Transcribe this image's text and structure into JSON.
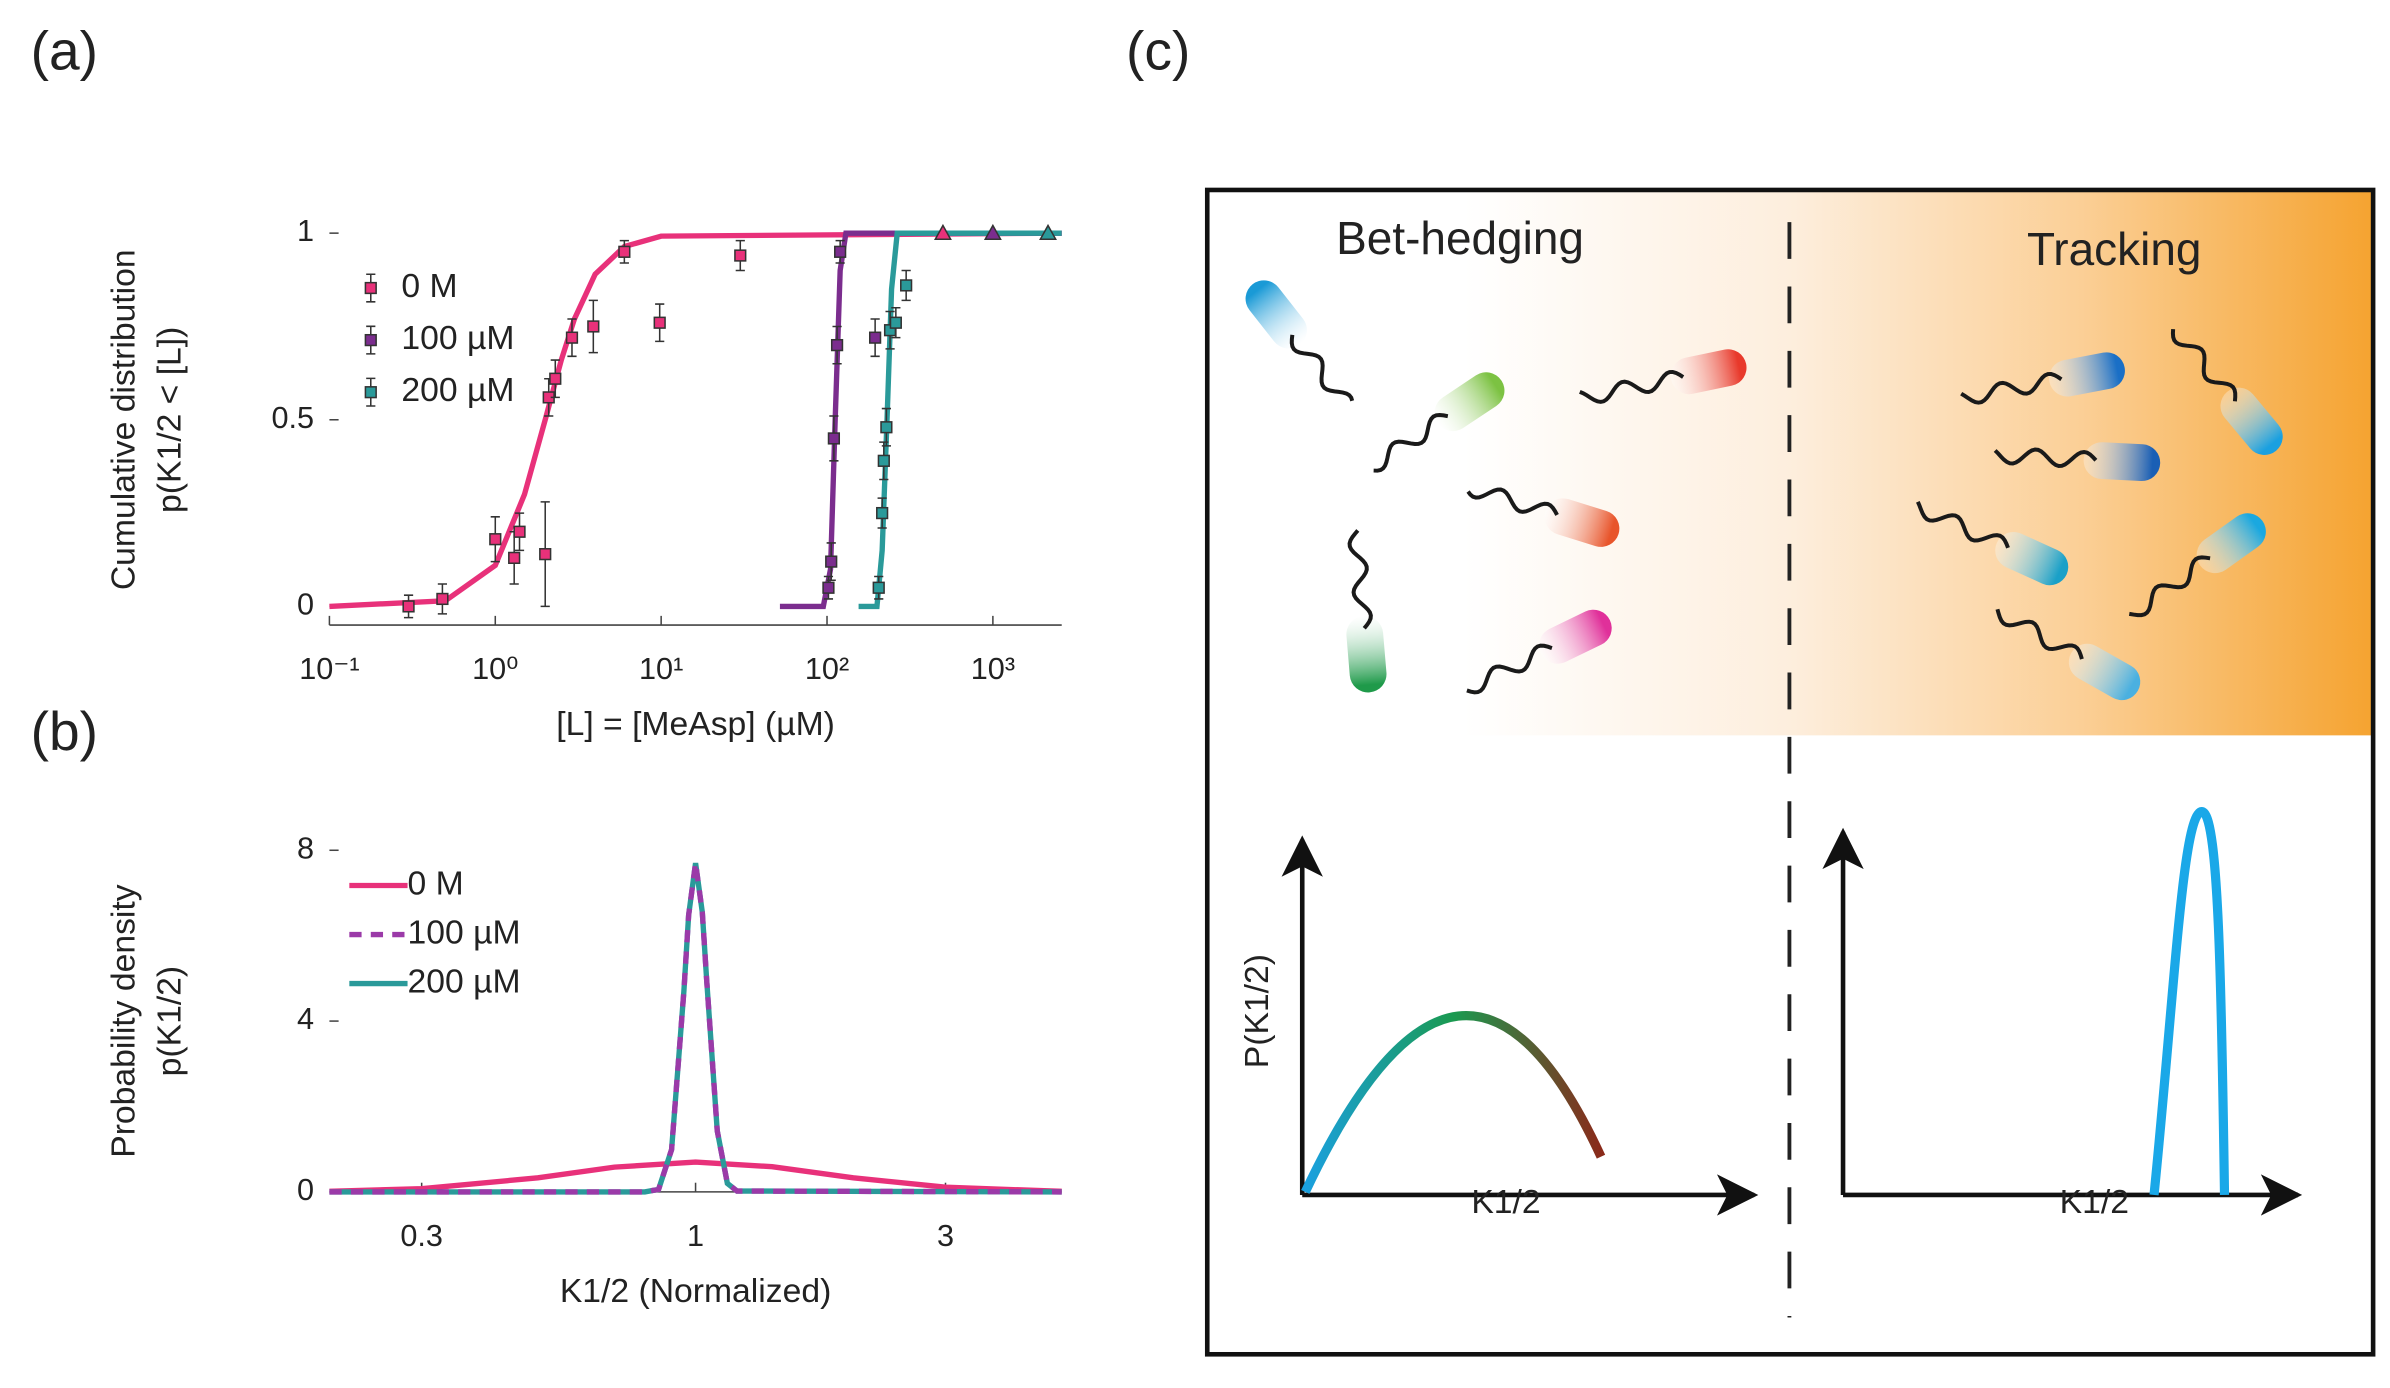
{
  "panels": [
    "(a)",
    "(b)",
    "(c)"
  ],
  "chart_data": [
    {
      "type": "scatter",
      "x_label": "[L] = [MeAsp] (µM)",
      "y_label": [
        "Cumulative distribution",
        "p(K1/2 < [L])"
      ],
      "xscale": "log",
      "xlim": [
        0.1,
        2600
      ],
      "ylim": [
        -0.05,
        1.05
      ],
      "xticks": [
        {
          "value": 0.1,
          "label": "10⁻¹"
        },
        {
          "value": 1,
          "label": "10⁰"
        },
        {
          "value": 10,
          "label": "10¹"
        },
        {
          "value": 100,
          "label": "10²"
        },
        {
          "value": 1000,
          "label": "10³"
        }
      ],
      "yticks": [
        0,
        0.5,
        1
      ],
      "series": [
        {
          "name": "0 M",
          "color": "#e8317a",
          "x": [
            0.3,
            0.48,
            1.0,
            1.3,
            1.4,
            2.0,
            2.1,
            2.3,
            2.9,
            3.9,
            6.0,
            9.8,
            30,
            500
          ],
          "values": [
            0,
            0.02,
            0.18,
            0.13,
            0.2,
            0.14,
            0.56,
            0.61,
            0.72,
            0.75,
            0.95,
            0.76,
            0.94,
            1
          ],
          "errors": [
            0.03,
            0.04,
            0.06,
            0.07,
            0.05,
            0.14,
            0.05,
            0.05,
            0.05,
            0.07,
            0.03,
            0.05,
            0.04,
            0
          ],
          "markers": [
            "square",
            "square",
            "square",
            "square",
            "square",
            "square",
            "square",
            "square",
            "square",
            "square",
            "square",
            "square",
            "square",
            "triangle"
          ]
        },
        {
          "name": "100 µM",
          "color": "#7b2d8e",
          "x": [
            102,
            106,
            110,
            115,
            120,
            195,
            1000
          ],
          "values": [
            0.05,
            0.12,
            0.45,
            0.7,
            0.95,
            0.72,
            1
          ],
          "errors": [
            0.03,
            0.05,
            0.06,
            0.05,
            0.03,
            0.05,
            0
          ],
          "markers": [
            "square",
            "square",
            "square",
            "square",
            "square",
            "square",
            "triangle"
          ]
        },
        {
          "name": "200 µM",
          "color": "#2a9a9a",
          "x": [
            205,
            215,
            220,
            228,
            240,
            260,
            300,
            2150
          ],
          "values": [
            0.05,
            0.25,
            0.39,
            0.48,
            0.74,
            0.76,
            0.86,
            1
          ],
          "errors": [
            0.03,
            0.04,
            0.05,
            0.05,
            0.05,
            0.04,
            0.04,
            0
          ],
          "markers": [
            "square",
            "square",
            "square",
            "square",
            "square",
            "square",
            "square",
            "triangle"
          ]
        }
      ],
      "fits": [
        {
          "color": "#e8317a",
          "x": [
            0.1,
            0.5,
            1,
            1.5,
            2,
            2.5,
            3,
            4,
            6,
            10,
            2600
          ],
          "values": [
            0,
            0.015,
            0.11,
            0.3,
            0.5,
            0.66,
            0.77,
            0.89,
            0.964,
            0.992,
            1
          ]
        },
        {
          "color": "#7b2d8e",
          "x": [
            52,
            95,
            105,
            112,
            120,
            130,
            2600
          ],
          "values": [
            0,
            0,
            0.1,
            0.5,
            0.9,
            1,
            1
          ]
        },
        {
          "color": "#2a9a9a",
          "x": [
            155,
            200,
            215,
            230,
            245,
            265,
            2600
          ],
          "values": [
            0,
            0,
            0.15,
            0.5,
            0.85,
            1,
            1
          ]
        }
      ]
    },
    {
      "type": "line",
      "x_label": "K1/2 (Normalized)",
      "y_label": [
        "Probability density",
        "p(K1/2)"
      ],
      "xscale": "log",
      "xlim": [
        0.2,
        5
      ],
      "ylim": [
        0,
        8
      ],
      "xticks": [
        0.3,
        1,
        3
      ],
      "yticks": [
        0,
        4,
        8
      ],
      "series": [
        {
          "name": "0 M",
          "color": "#e8317a",
          "dash": false,
          "x": [
            0.2,
            0.3,
            0.5,
            0.7,
            1,
            1.4,
            2,
            3,
            5
          ],
          "values": [
            0.013,
            0.075,
            0.33,
            0.58,
            0.7,
            0.59,
            0.33,
            0.11,
            0.013
          ]
        },
        {
          "name": "100 µM",
          "color": "#9b3aa8",
          "dash": true,
          "x": [
            0.2,
            0.8,
            0.85,
            0.9,
            0.95,
            0.97,
            1,
            1.03,
            1.05,
            1.1,
            1.15,
            1.2,
            5
          ],
          "values": [
            0,
            0,
            0.06,
            0.99,
            4.7,
            6.48,
            7.7,
            6.55,
            4.96,
            1.43,
            0.2,
            0.02,
            0
          ]
        },
        {
          "name": "200 µM",
          "color": "#2a9a9a",
          "dash": false,
          "x": [
            0.2,
            0.8,
            0.85,
            0.9,
            0.95,
            0.97,
            1,
            1.03,
            1.05,
            1.1,
            1.15,
            1.2,
            5
          ],
          "values": [
            0,
            0,
            0.06,
            0.99,
            4.7,
            6.48,
            7.7,
            6.55,
            4.96,
            1.43,
            0.2,
            0.02,
            0
          ]
        }
      ]
    }
  ],
  "diagram": {
    "left_title": "Bet-hedging",
    "right_title": "Tracking",
    "y_label": "P(K1/2)",
    "x_label_left": "K1/2",
    "x_label_right": "K1/2"
  }
}
